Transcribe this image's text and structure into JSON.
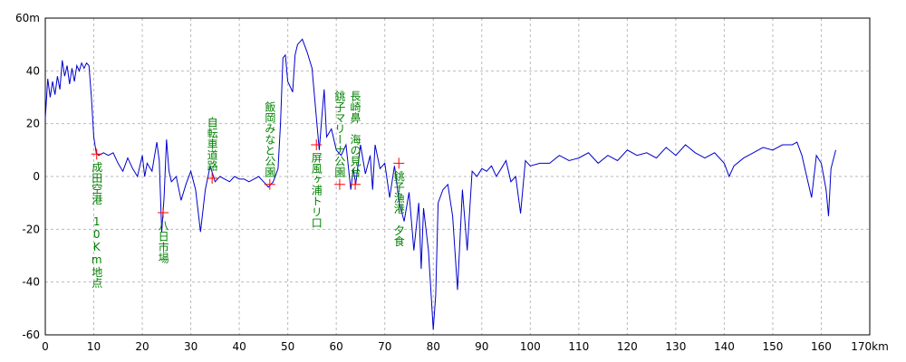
{
  "chart_data": {
    "type": "line",
    "x": [
      0,
      0.5,
      1,
      1.5,
      2,
      2.5,
      3,
      3.5,
      4,
      4.5,
      5,
      5.5,
      6,
      6.5,
      7,
      7.5,
      8,
      8.5,
      9,
      9.5,
      10,
      10.5,
      11,
      12,
      13,
      14,
      15,
      16,
      17,
      18,
      19,
      20,
      20.5,
      21,
      22,
      23,
      23.5,
      24,
      24.5,
      25,
      25.5,
      26,
      27,
      28,
      29,
      30,
      31,
      32,
      33,
      34,
      35,
      36,
      37,
      38,
      39,
      40,
      41,
      42,
      43,
      44,
      45,
      46,
      47,
      48,
      48.5,
      49,
      49.5,
      50,
      51,
      51.5,
      52,
      53,
      54,
      55,
      56,
      56.5,
      57,
      57.5,
      58,
      59,
      60,
      61,
      62,
      63,
      63.5,
      64,
      65,
      66,
      67,
      67.5,
      68,
      69,
      70,
      71,
      72,
      73,
      74,
      75,
      76,
      77,
      77.5,
      78,
      79,
      80,
      80.5,
      81,
      82,
      83,
      84,
      85,
      86,
      87,
      88,
      89,
      90,
      91,
      92,
      93,
      94,
      95,
      96,
      97,
      98,
      99,
      100,
      102,
      104,
      106,
      108,
      110,
      112,
      114,
      116,
      118,
      120,
      122,
      124,
      126,
      128,
      130,
      132,
      134,
      136,
      138,
      140,
      141,
      142,
      144,
      146,
      148,
      150,
      152,
      154,
      155,
      156,
      157,
      158,
      159,
      160,
      161,
      161.5,
      162,
      163
    ],
    "series": [
      {
        "color": "#0000cc",
        "values": [
          22,
          37,
          30,
          36,
          31,
          38,
          33,
          44,
          38,
          42,
          35,
          41,
          36,
          42,
          40,
          43,
          41,
          43,
          42,
          30,
          15,
          9,
          8,
          9,
          8,
          9,
          5,
          2,
          7,
          3,
          0,
          8,
          0,
          5,
          2,
          13,
          6,
          -21,
          -8,
          14,
          2,
          -2,
          0,
          -9,
          -3,
          2,
          -5,
          -21,
          -5,
          4,
          -2,
          0,
          -1,
          -2,
          0,
          -1,
          -1,
          -2,
          -1,
          0,
          -2,
          -4,
          -2,
          3,
          20,
          45,
          46,
          36,
          32,
          46,
          50,
          52,
          47,
          41,
          20,
          10,
          22,
          33,
          15,
          18,
          10,
          8,
          12,
          -5,
          3,
          -3,
          12,
          1,
          8,
          -5,
          12,
          3,
          5,
          -8,
          4,
          -10,
          -17,
          -6,
          -28,
          -10,
          -35,
          -12,
          -28,
          -58,
          -45,
          -10,
          -5,
          -3,
          -15,
          -43,
          -5,
          -28,
          2,
          0,
          3,
          2,
          4,
          0,
          3,
          6,
          -2,
          0,
          -14,
          6,
          4,
          5,
          5,
          8,
          6,
          7,
          9,
          5,
          8,
          6,
          10,
          8,
          9,
          7,
          11,
          8,
          12,
          9,
          7,
          9,
          5,
          0,
          4,
          7,
          9,
          11,
          10,
          12,
          12,
          13,
          8,
          0,
          -8,
          8,
          5,
          -5,
          -15,
          3,
          10
        ]
      }
    ],
    "xlim": [
      0,
      170
    ],
    "ylim": [
      -60,
      60
    ],
    "xticks": [
      0,
      10,
      20,
      30,
      40,
      50,
      60,
      70,
      80,
      90,
      100,
      110,
      120,
      130,
      140,
      150,
      160,
      {
        "value": 170,
        "label": "170km"
      }
    ],
    "yticks": [
      {
        "value": 60,
        "label": "60m"
      },
      40,
      20,
      0,
      -20,
      -40,
      -60
    ],
    "grid": true,
    "annotations": [
      {
        "text": "成田空港　10Km地点",
        "x": 10.6,
        "y": 8.5
      },
      {
        "text": "八日市場",
        "x": 24.3,
        "y": -13.7
      },
      {
        "text": "自転車道路",
        "x": 34.4,
        "y": -0.7
      },
      {
        "text": "飯岡みなと公園",
        "x": 46.3,
        "y": -3
      },
      {
        "text": "屏風ヶ浦トリ口",
        "x": 55.9,
        "y": 12
      },
      {
        "text": "銚子マリーナ公園",
        "x": 60.7,
        "y": -3
      },
      {
        "text": "長崎鼻　海の見台",
        "x": 63.9,
        "y": -3
      },
      {
        "text": "銚子漁港　夕食",
        "x": 72.9,
        "y": 5
      }
    ]
  }
}
